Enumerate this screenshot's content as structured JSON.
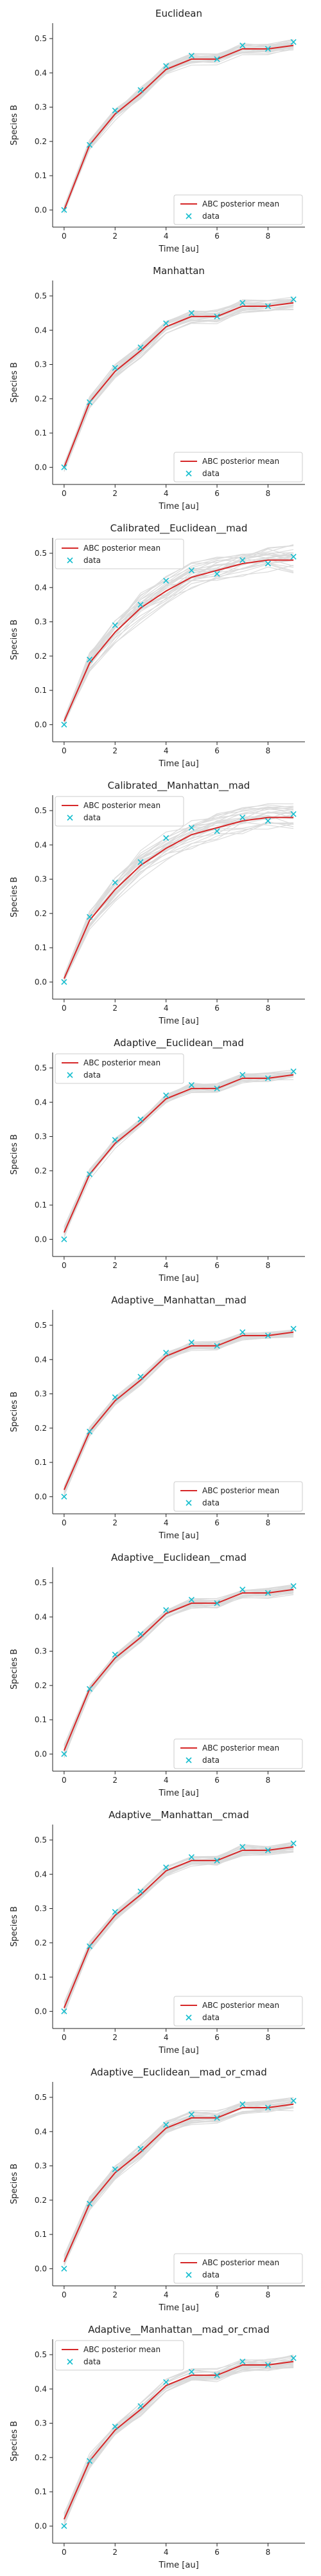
{
  "figure": {
    "x_ticks": [
      0,
      2,
      4,
      6,
      8
    ],
    "y_ticks": [
      0.0,
      0.1,
      0.2,
      0.3,
      0.4,
      0.5
    ],
    "xlim": [
      -0.45,
      9.45
    ],
    "ylim": [
      -0.05,
      0.545
    ],
    "colors": {
      "posterior_mean": "#d62728",
      "data": "#17becf",
      "samples": "#9a9a9a"
    }
  },
  "chart_data": [
    {
      "type": "line",
      "title": "Euclidean",
      "xlabel": "Time [au]",
      "ylabel": "Species B",
      "legend_position": "lower-right",
      "legend": [
        "ABC posterior mean",
        "data"
      ],
      "x": [
        0,
        1,
        2,
        3,
        4,
        5,
        6,
        7,
        8,
        9
      ],
      "series": [
        {
          "name": "ABC posterior mean",
          "values": [
            0.0,
            0.19,
            0.28,
            0.34,
            0.41,
            0.44,
            0.44,
            0.47,
            0.47,
            0.48
          ]
        },
        {
          "name": "data",
          "values": [
            0.0,
            0.19,
            0.29,
            0.35,
            0.42,
            0.45,
            0.44,
            0.48,
            0.47,
            0.49
          ]
        }
      ],
      "band_halfwidth": [
        0.015,
        0.02,
        0.02,
        0.02,
        0.02,
        0.02,
        0.02,
        0.02,
        0.02,
        0.02
      ]
    },
    {
      "type": "line",
      "title": "Manhattan",
      "xlabel": "Time [au]",
      "ylabel": "Species B",
      "legend_position": "lower-right",
      "legend": [
        "ABC posterior mean",
        "data"
      ],
      "x": [
        0,
        1,
        2,
        3,
        4,
        5,
        6,
        7,
        8,
        9
      ],
      "series": [
        {
          "name": "ABC posterior mean",
          "values": [
            0.0,
            0.19,
            0.28,
            0.34,
            0.41,
            0.44,
            0.44,
            0.47,
            0.47,
            0.48
          ]
        },
        {
          "name": "data",
          "values": [
            0.0,
            0.19,
            0.29,
            0.35,
            0.42,
            0.45,
            0.44,
            0.48,
            0.47,
            0.49
          ]
        }
      ],
      "band_halfwidth": [
        0.015,
        0.02,
        0.02,
        0.02,
        0.02,
        0.02,
        0.02,
        0.02,
        0.02,
        0.02
      ]
    },
    {
      "type": "line",
      "title": "Calibrated__Euclidean__mad",
      "xlabel": "Time [au]",
      "ylabel": "Species B",
      "legend_position": "upper-left",
      "legend": [
        "ABC posterior mean",
        "data"
      ],
      "x": [
        0,
        1,
        2,
        3,
        4,
        5,
        6,
        7,
        8,
        9
      ],
      "series": [
        {
          "name": "ABC posterior mean",
          "values": [
            0.01,
            0.18,
            0.27,
            0.34,
            0.39,
            0.43,
            0.45,
            0.47,
            0.48,
            0.48
          ]
        },
        {
          "name": "data",
          "values": [
            0.0,
            0.19,
            0.29,
            0.35,
            0.42,
            0.45,
            0.44,
            0.48,
            0.47,
            0.49
          ]
        }
      ],
      "band_halfwidth": [
        0.01,
        0.03,
        0.04,
        0.045,
        0.045,
        0.045,
        0.045,
        0.045,
        0.045,
        0.045
      ]
    },
    {
      "type": "line",
      "title": "Calibrated__Manhattan__mad",
      "xlabel": "Time [au]",
      "ylabel": "Species B",
      "legend_position": "upper-left",
      "legend": [
        "ABC posterior mean",
        "data"
      ],
      "x": [
        0,
        1,
        2,
        3,
        4,
        5,
        6,
        7,
        8,
        9
      ],
      "series": [
        {
          "name": "ABC posterior mean",
          "values": [
            0.01,
            0.18,
            0.27,
            0.34,
            0.39,
            0.43,
            0.45,
            0.47,
            0.48,
            0.48
          ]
        },
        {
          "name": "data",
          "values": [
            0.0,
            0.19,
            0.29,
            0.35,
            0.42,
            0.45,
            0.44,
            0.48,
            0.47,
            0.49
          ]
        }
      ],
      "band_halfwidth": [
        0.01,
        0.03,
        0.04,
        0.045,
        0.045,
        0.045,
        0.045,
        0.045,
        0.045,
        0.045
      ]
    },
    {
      "type": "line",
      "title": "Adaptive__Euclidean__mad",
      "xlabel": "Time [au]",
      "ylabel": "Species B",
      "legend_position": "upper-left",
      "legend": [
        "ABC posterior mean",
        "data"
      ],
      "x": [
        0,
        1,
        2,
        3,
        4,
        5,
        6,
        7,
        8,
        9
      ],
      "series": [
        {
          "name": "ABC posterior mean",
          "values": [
            0.02,
            0.19,
            0.28,
            0.34,
            0.41,
            0.44,
            0.44,
            0.47,
            0.47,
            0.48
          ]
        },
        {
          "name": "data",
          "values": [
            0.0,
            0.19,
            0.29,
            0.35,
            0.42,
            0.45,
            0.44,
            0.48,
            0.47,
            0.49
          ]
        }
      ],
      "band_halfwidth": [
        0.02,
        0.015,
        0.015,
        0.015,
        0.015,
        0.015,
        0.015,
        0.015,
        0.015,
        0.015
      ]
    },
    {
      "type": "line",
      "title": "Adaptive__Manhattan__mad",
      "xlabel": "Time [au]",
      "ylabel": "Species B",
      "legend_position": "lower-right",
      "legend": [
        "ABC posterior mean",
        "data"
      ],
      "x": [
        0,
        1,
        2,
        3,
        4,
        5,
        6,
        7,
        8,
        9
      ],
      "series": [
        {
          "name": "ABC posterior mean",
          "values": [
            0.02,
            0.19,
            0.28,
            0.34,
            0.41,
            0.44,
            0.44,
            0.47,
            0.47,
            0.48
          ]
        },
        {
          "name": "data",
          "values": [
            0.0,
            0.19,
            0.29,
            0.35,
            0.42,
            0.45,
            0.44,
            0.48,
            0.47,
            0.49
          ]
        }
      ],
      "band_halfwidth": [
        0.02,
        0.015,
        0.015,
        0.015,
        0.015,
        0.015,
        0.015,
        0.015,
        0.015,
        0.015
      ]
    },
    {
      "type": "line",
      "title": "Adaptive__Euclidean__cmad",
      "xlabel": "Time [au]",
      "ylabel": "Species B",
      "legend_position": "lower-right",
      "legend": [
        "ABC posterior mean",
        "data"
      ],
      "x": [
        0,
        1,
        2,
        3,
        4,
        5,
        6,
        7,
        8,
        9
      ],
      "series": [
        {
          "name": "ABC posterior mean",
          "values": [
            0.01,
            0.19,
            0.28,
            0.34,
            0.41,
            0.44,
            0.44,
            0.47,
            0.47,
            0.48
          ]
        },
        {
          "name": "data",
          "values": [
            0.0,
            0.19,
            0.29,
            0.35,
            0.42,
            0.45,
            0.44,
            0.48,
            0.47,
            0.49
          ]
        }
      ],
      "band_halfwidth": [
        0.02,
        0.015,
        0.015,
        0.015,
        0.015,
        0.015,
        0.015,
        0.015,
        0.015,
        0.015
      ]
    },
    {
      "type": "line",
      "title": "Adaptive__Manhattan__cmad",
      "xlabel": "Time [au]",
      "ylabel": "Species B",
      "legend_position": "lower-right",
      "legend": [
        "ABC posterior mean",
        "data"
      ],
      "x": [
        0,
        1,
        2,
        3,
        4,
        5,
        6,
        7,
        8,
        9
      ],
      "series": [
        {
          "name": "ABC posterior mean",
          "values": [
            0.01,
            0.19,
            0.28,
            0.34,
            0.41,
            0.44,
            0.44,
            0.47,
            0.47,
            0.48
          ]
        },
        {
          "name": "data",
          "values": [
            0.0,
            0.19,
            0.29,
            0.35,
            0.42,
            0.45,
            0.44,
            0.48,
            0.47,
            0.49
          ]
        }
      ],
      "band_halfwidth": [
        0.02,
        0.015,
        0.015,
        0.015,
        0.015,
        0.015,
        0.015,
        0.015,
        0.015,
        0.015
      ]
    },
    {
      "type": "line",
      "title": "Adaptive__Euclidean__mad_or_cmad",
      "xlabel": "Time [au]",
      "ylabel": "Species B",
      "legend_position": "lower-right",
      "legend": [
        "ABC posterior mean",
        "data"
      ],
      "x": [
        0,
        1,
        2,
        3,
        4,
        5,
        6,
        7,
        8,
        9
      ],
      "series": [
        {
          "name": "ABC posterior mean",
          "values": [
            0.02,
            0.19,
            0.28,
            0.34,
            0.41,
            0.44,
            0.44,
            0.47,
            0.47,
            0.48
          ]
        },
        {
          "name": "data",
          "values": [
            0.0,
            0.19,
            0.29,
            0.35,
            0.42,
            0.45,
            0.44,
            0.48,
            0.47,
            0.49
          ]
        }
      ],
      "band_halfwidth": [
        0.02,
        0.02,
        0.02,
        0.02,
        0.02,
        0.02,
        0.02,
        0.02,
        0.02,
        0.02
      ]
    },
    {
      "type": "line",
      "title": "Adaptive__Manhattan__mad_or_cmad",
      "xlabel": "Time [au]",
      "ylabel": "Species B",
      "legend_position": "upper-left",
      "legend": [
        "ABC posterior mean",
        "data"
      ],
      "x": [
        0,
        1,
        2,
        3,
        4,
        5,
        6,
        7,
        8,
        9
      ],
      "series": [
        {
          "name": "ABC posterior mean",
          "values": [
            0.02,
            0.19,
            0.28,
            0.34,
            0.41,
            0.44,
            0.44,
            0.47,
            0.47,
            0.48
          ]
        },
        {
          "name": "data",
          "values": [
            0.0,
            0.19,
            0.29,
            0.35,
            0.42,
            0.45,
            0.44,
            0.48,
            0.47,
            0.49
          ]
        }
      ],
      "band_halfwidth": [
        0.02,
        0.02,
        0.02,
        0.02,
        0.02,
        0.02,
        0.02,
        0.02,
        0.02,
        0.02
      ]
    }
  ]
}
